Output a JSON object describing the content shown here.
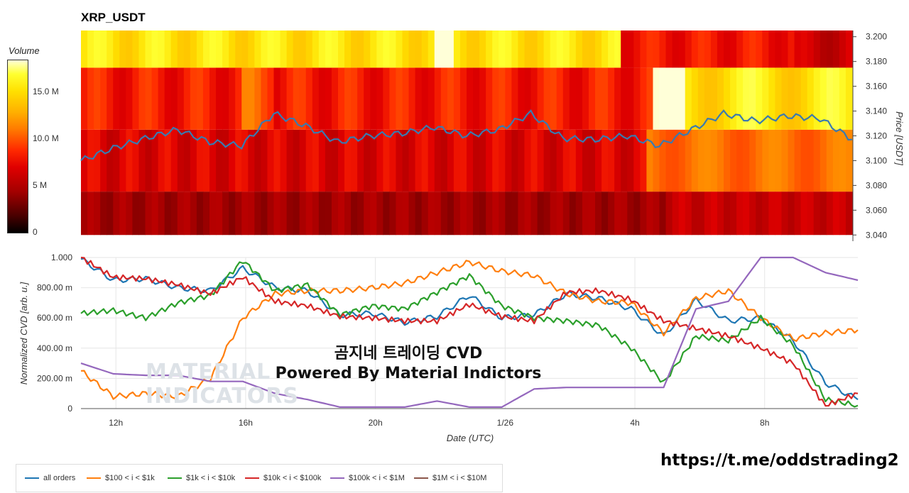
{
  "title": "XRP_USDT",
  "overlay": {
    "line1": "곰지네 트레이딩 CVD",
    "line2": "Powered By Material Indictors"
  },
  "watermark": {
    "line1": "MATERIAL",
    "line2": "INDICATORS"
  },
  "footer_url": "https://t.me/oddstrading2",
  "colorbar": {
    "title": "Volume",
    "ticks": [
      "0",
      "5 M",
      "10.0 M",
      "15.0 M"
    ],
    "tick_values": [
      0,
      5,
      10,
      15
    ],
    "max": 18.5
  },
  "chart_data": [
    {
      "type": "heatmap",
      "title": "XRP_USDT",
      "ylabel": "Price [USDT]",
      "y_ticks": [
        "3.200",
        "3.180",
        "3.160",
        "3.140",
        "3.120",
        "3.100",
        "3.080",
        "3.060",
        "3.040"
      ],
      "ylim": [
        3.035,
        3.205
      ],
      "price_bands": [
        {
          "low": 3.04,
          "high": 3.075,
          "volume_m": 3.5
        },
        {
          "low": 3.075,
          "high": 3.125,
          "volume_m": 6.5
        },
        {
          "low": 3.125,
          "high": 3.175,
          "volume_m": 8.0
        },
        {
          "low": 3.175,
          "high": 3.205,
          "volume_m": 15.0
        }
      ],
      "price_line": {
        "color": "#3a7ab0",
        "x": [
          0,
          1,
          2,
          3,
          4,
          5,
          6,
          7,
          8,
          9,
          10,
          11,
          12,
          13,
          14,
          15,
          16,
          17,
          18,
          19,
          20,
          21,
          22,
          23,
          24
        ],
        "values": [
          3.1,
          3.11,
          3.118,
          3.125,
          3.115,
          3.112,
          3.138,
          3.128,
          3.115,
          3.12,
          3.122,
          3.127,
          3.12,
          3.125,
          3.138,
          3.118,
          3.117,
          3.12,
          3.112,
          3.125,
          3.138,
          3.132,
          3.136,
          3.134,
          3.117
        ]
      }
    },
    {
      "type": "line",
      "xlabel": "Date (UTC)",
      "ylabel": "Normalized CVD [arb. u.]",
      "x_ticks": [
        "12h",
        "16h",
        "20h",
        "1/26",
        "4h",
        "8h"
      ],
      "y_ticks": [
        "0",
        "200.00 m",
        "400.00 m",
        "600.00 m",
        "800.00 m",
        "1.000"
      ],
      "ylim": [
        0,
        1.0
      ],
      "series": [
        {
          "name": "all orders",
          "color": "#1f77b4",
          "values": [
            0.99,
            0.85,
            0.86,
            0.8,
            0.78,
            0.93,
            0.8,
            0.78,
            0.62,
            0.63,
            0.57,
            0.61,
            0.75,
            0.6,
            0.62,
            0.76,
            0.73,
            0.66,
            0.48,
            0.72,
            0.58,
            0.6,
            0.45,
            0.17,
            0.06
          ]
        },
        {
          "name": "$100 < i < $1k",
          "color": "#ff7f0e",
          "values": [
            0.25,
            0.08,
            0.1,
            0.08,
            0.2,
            0.6,
            0.76,
            0.78,
            0.78,
            0.8,
            0.83,
            0.9,
            0.97,
            0.91,
            0.88,
            0.76,
            0.71,
            0.7,
            0.5,
            0.73,
            0.78,
            0.6,
            0.46,
            0.5,
            0.52
          ]
        },
        {
          "name": "$1k < i < $10k",
          "color": "#2ca02c",
          "values": [
            0.63,
            0.65,
            0.6,
            0.7,
            0.75,
            0.98,
            0.78,
            0.82,
            0.62,
            0.68,
            0.66,
            0.77,
            0.88,
            0.68,
            0.6,
            0.58,
            0.55,
            0.4,
            0.17,
            0.48,
            0.45,
            0.6,
            0.42,
            0.06,
            0.02
          ]
        },
        {
          "name": "$10k < i < $100k",
          "color": "#d62728",
          "values": [
            1.0,
            0.87,
            0.86,
            0.82,
            0.76,
            0.87,
            0.71,
            0.68,
            0.61,
            0.6,
            0.58,
            0.58,
            0.69,
            0.61,
            0.58,
            0.77,
            0.78,
            0.72,
            0.58,
            0.53,
            0.48,
            0.4,
            0.3,
            0.02,
            0.1
          ]
        },
        {
          "name": "$100k < i < $1M",
          "color": "#9467bd",
          "values": [
            0.3,
            0.23,
            0.22,
            0.22,
            0.18,
            0.18,
            0.1,
            0.06,
            0.01,
            0.01,
            0.01,
            0.05,
            0.01,
            0.01,
            0.13,
            0.14,
            0.14,
            0.14,
            0.14,
            0.66,
            0.71,
            1.0,
            1.0,
            0.9,
            0.85
          ]
        },
        {
          "name": "$1M < i < $10M",
          "color": "#8c564b",
          "values": []
        }
      ]
    }
  ]
}
